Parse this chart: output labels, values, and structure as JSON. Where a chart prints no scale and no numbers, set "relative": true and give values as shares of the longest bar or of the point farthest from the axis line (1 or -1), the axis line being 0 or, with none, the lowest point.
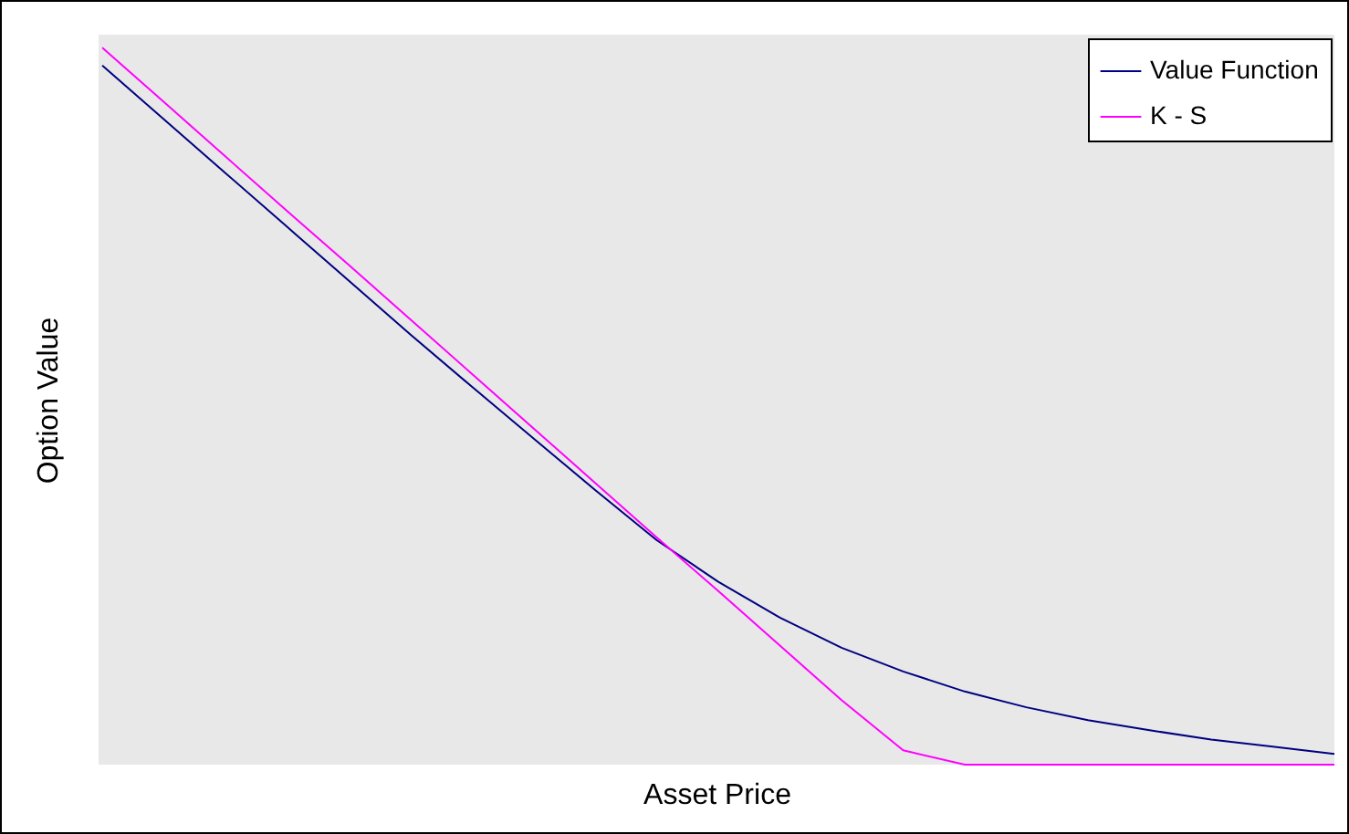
{
  "chart_data": {
    "type": "line",
    "relative": true,
    "xlabel": "Asset Price",
    "ylabel": "Option Value",
    "legend": "top right",
    "tick_labels": false,
    "marker": "none",
    "line_style": "solid",
    "categories": [
      null,
      null,
      null,
      null,
      null,
      null,
      null,
      null,
      null,
      null,
      null,
      null,
      null,
      null,
      null,
      null,
      null,
      null,
      null,
      null,
      null
    ],
    "series": [
      {
        "name": "Value Function",
        "color": "#000080",
        "values": [
          0.975,
          0.9,
          0.825,
          0.75,
          0.675,
          0.6,
          0.527,
          0.455,
          0.383,
          0.313,
          0.255,
          0.205,
          0.163,
          0.13,
          0.102,
          0.08,
          0.062,
          0.048,
          0.035,
          0.025,
          0.015
        ]
      },
      {
        "name": "K - S",
        "color": "#ff00ff",
        "values": [
          1.0,
          0.924,
          0.848,
          0.772,
          0.697,
          0.621,
          0.545,
          0.469,
          0.393,
          0.317,
          0.242,
          0.166,
          0.09,
          0.02,
          0,
          0,
          0,
          0,
          0,
          0,
          0
        ]
      }
    ]
  }
}
